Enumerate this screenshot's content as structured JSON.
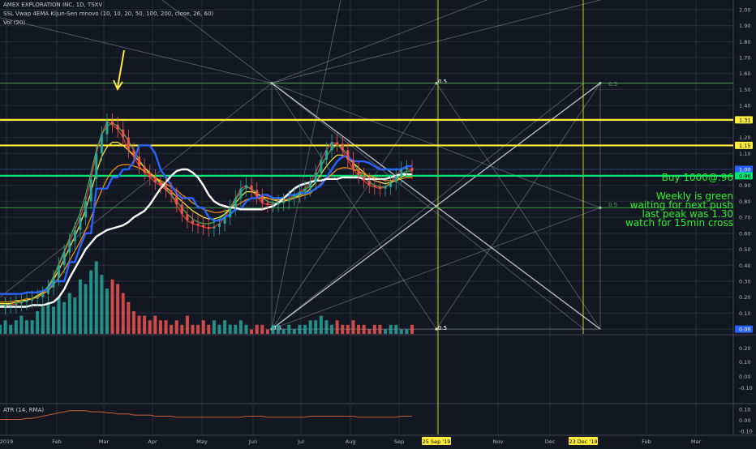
{
  "header": {
    "title": "AMEX EXPLORATION INC, 1D, TSXV",
    "indicators": "SSL Vwap 4EMA Kijun-Sen mnovo (10, 10, 20, 50, 100, 200, close, 26, 60)",
    "volume": "Vol (20)"
  },
  "atr": {
    "label": "ATR (14, RMA)",
    "ticks": [
      "0.10",
      "0.00",
      "-0.10"
    ]
  },
  "annotation": {
    "buy": "Buy 1000@.96",
    "line2": "Weekly is green",
    "line3": "waiting for next push",
    "line4": "last peak was 1.30",
    "line5": "watch for 15min cross"
  },
  "chart_data": {
    "type": "line",
    "price_axis": {
      "ylim": [
        -0.03,
        2.03
      ],
      "ticks": [
        "2.00",
        "1.90",
        "1.80",
        "1.70",
        "1.60",
        "1.50",
        "1.40",
        "1.30",
        "1.20",
        "1.10",
        "1.00",
        "0.90",
        "0.80",
        "0.70",
        "0.60",
        "0.50",
        "0.40",
        "0.30",
        "0.20",
        "0.10",
        "0.00"
      ],
      "badges": [
        {
          "label": "1.31",
          "color": "#ffeb3b",
          "text_color": "#000000"
        },
        {
          "label": "1.15",
          "color": "#ffeb3b",
          "text_color": "#000000"
        },
        {
          "label": "1.00",
          "color": "#2962ff",
          "text_color": "#ffffff"
        },
        {
          "label": "0.96",
          "color": "#00e676",
          "text_color": "#000000"
        },
        {
          "label": "0.00",
          "color": "#2962ff",
          "text_color": "#ffffff"
        }
      ]
    },
    "volume_axis": {
      "ticks": [
        "0.20",
        "0.10",
        "0.00",
        "-0.10"
      ]
    },
    "time_axis": {
      "ticks": [
        "2019",
        "Feb",
        "Mar",
        "Apr",
        "May",
        "Jun",
        "Jul",
        "Aug",
        "Sep",
        "25 Sep '19",
        "Nov",
        "Dec",
        "23 Dec '19",
        "Feb",
        "Mar"
      ],
      "highlighted": [
        "25 Sep '19",
        "23 Dec '19"
      ]
    },
    "horizontal_levels": [
      {
        "value": 1.31,
        "color": "#ffeb3b"
      },
      {
        "value": 1.15,
        "color": "#ffeb3b"
      },
      {
        "value": 0.96,
        "color": "#00e676"
      },
      {
        "value": 1.54,
        "color": "#4caf50"
      },
      {
        "value": 0.76,
        "color": "#4caf50"
      }
    ],
    "gann_labels": [
      "0.5",
      "0.5",
      "0.5",
      "0.5",
      "0.5"
    ],
    "series": [
      {
        "values": [
          0.14,
          0.15,
          0.15,
          0.16,
          0.17,
          0.18,
          0.19,
          0.2,
          0.22,
          0.26,
          0.32,
          0.4,
          0.48,
          0.55,
          0.62,
          0.7,
          0.8,
          0.94,
          1.1,
          1.22,
          1.3,
          1.28,
          1.25,
          1.2,
          1.12,
          1.08,
          1.02,
          0.98,
          0.95,
          0.92,
          0.9,
          0.87,
          0.84,
          0.78,
          0.72,
          0.68,
          0.66,
          0.65,
          0.64,
          0.63,
          0.64,
          0.66,
          0.7,
          0.76,
          0.82,
          0.88,
          0.9,
          0.87,
          0.83,
          0.79,
          0.78,
          0.78,
          0.79,
          0.8,
          0.82,
          0.84,
          0.86,
          0.88,
          0.92,
          0.98,
          1.06,
          1.12,
          1.17,
          1.16,
          1.12,
          1.06,
          1.0,
          0.96,
          0.93,
          0.9,
          0.89,
          0.88,
          0.89,
          0.92,
          0.96,
          1.0,
          1.01,
          0.99
        ]
      },
      {
        "values": [
          0.15,
          0.15,
          0.16,
          0.17,
          0.17,
          0.18,
          0.19,
          0.21,
          0.23,
          0.27,
          0.33,
          0.41,
          0.49,
          0.57,
          0.65,
          0.73,
          0.84,
          0.98,
          1.12,
          1.22,
          1.27,
          1.29,
          1.27,
          1.23,
          1.18,
          1.12,
          1.06,
          1.01,
          0.97,
          0.94,
          0.91,
          0.88,
          0.84,
          0.8,
          0.76,
          0.72,
          0.69,
          0.67,
          0.66,
          0.66,
          0.67,
          0.69,
          0.72,
          0.76,
          0.81,
          0.86,
          0.89,
          0.88,
          0.85,
          0.82,
          0.8,
          0.79,
          0.79,
          0.8,
          0.81,
          0.83,
          0.85,
          0.87,
          0.9,
          0.95,
          1.02,
          1.08,
          1.13,
          1.15,
          1.13,
          1.09,
          1.04,
          0.99,
          0.95,
          0.92,
          0.9,
          0.89,
          0.89,
          0.91,
          0.94,
          0.97,
          0.99,
          0.99
        ]
      },
      {
        "values": [
          0.16,
          0.16,
          0.16,
          0.17,
          0.18,
          0.18,
          0.19,
          0.21,
          0.23,
          0.26,
          0.31,
          0.37,
          0.44,
          0.51,
          0.58,
          0.66,
          0.75,
          0.86,
          0.98,
          1.08,
          1.14,
          1.17,
          1.17,
          1.15,
          1.12,
          1.09,
          1.05,
          1.01,
          0.98,
          0.95,
          0.92,
          0.89,
          0.86,
          0.83,
          0.8,
          0.77,
          0.74,
          0.72,
          0.7,
          0.69,
          0.69,
          0.7,
          0.72,
          0.75,
          0.79,
          0.83,
          0.86,
          0.86,
          0.85,
          0.83,
          0.82,
          0.81,
          0.8,
          0.8,
          0.81,
          0.82,
          0.84,
          0.85,
          0.88,
          0.92,
          0.97,
          1.02,
          1.06,
          1.09,
          1.09,
          1.07,
          1.04,
          1.01,
          0.98,
          0.95,
          0.93,
          0.92,
          0.91,
          0.92,
          0.93,
          0.95,
          0.97,
          0.97
        ]
      },
      {
        "values": [
          0.17,
          0.17,
          0.17,
          0.18,
          0.18,
          0.19,
          0.19,
          0.2,
          0.22,
          0.24,
          0.28,
          0.32,
          0.37,
          0.43,
          0.49,
          0.55,
          0.62,
          0.7,
          0.79,
          0.87,
          0.94,
          0.99,
          1.02,
          1.03,
          1.03,
          1.02,
          1.01,
          0.99,
          0.97,
          0.95,
          0.93,
          0.91,
          0.89,
          0.87,
          0.84,
          0.82,
          0.79,
          0.77,
          0.75,
          0.74,
          0.73,
          0.73,
          0.74,
          0.75,
          0.77,
          0.79,
          0.81,
          0.82,
          0.82,
          0.82,
          0.82,
          0.81,
          0.81,
          0.81,
          0.81,
          0.82,
          0.83,
          0.84,
          0.85,
          0.88,
          0.91,
          0.94,
          0.97,
          1.0,
          1.01,
          1.01,
          1.0,
          0.99,
          0.97,
          0.96,
          0.95,
          0.94,
          0.93,
          0.93,
          0.93,
          0.94,
          0.95,
          0.95
        ]
      },
      {
        "values": [
          0.22,
          0.22,
          0.22,
          0.22,
          0.22,
          0.23,
          0.23,
          0.23,
          0.24,
          0.25,
          0.3,
          0.3,
          0.3,
          0.42,
          0.42,
          0.52,
          0.6,
          0.6,
          0.88,
          0.88,
          0.88,
          0.95,
          0.95,
          1.0,
          1.0,
          1.05,
          1.15,
          1.15,
          1.15,
          1.1,
          1.0,
          0.95,
          0.9,
          0.85,
          0.82,
          0.82,
          0.82,
          0.76,
          0.76,
          0.7,
          0.68,
          0.68,
          0.7,
          0.72,
          0.75,
          0.75,
          0.8,
          0.82,
          0.82,
          0.84,
          0.84,
          0.82,
          0.82,
          0.82,
          0.84,
          0.84,
          0.85,
          0.85,
          0.86,
          0.88,
          0.9,
          0.95,
          1.0,
          1.05,
          1.08,
          1.08,
          1.05,
          1.05,
          1.05,
          1.04,
          1.02,
          1.0,
          1.0,
          1.0,
          1.0,
          1.0,
          1.02,
          1.02
        ]
      },
      {
        "values": [
          0.14,
          0.14,
          0.14,
          0.14,
          0.14,
          0.14,
          0.15,
          0.15,
          0.15,
          0.16,
          0.17,
          0.2,
          0.25,
          0.32,
          0.38,
          0.44,
          0.5,
          0.54,
          0.58,
          0.6,
          0.62,
          0.63,
          0.64,
          0.65,
          0.67,
          0.7,
          0.72,
          0.74,
          0.78,
          0.83,
          0.88,
          0.92,
          0.96,
          0.99,
          1.0,
          1.0,
          0.98,
          0.95,
          0.9,
          0.84,
          0.8,
          0.78,
          0.77,
          0.76,
          0.76,
          0.75,
          0.75,
          0.75,
          0.75,
          0.75,
          0.76,
          0.77,
          0.79,
          0.82,
          0.85,
          0.88,
          0.9,
          0.91,
          0.92,
          0.93,
          0.93,
          0.94,
          0.94,
          0.94,
          0.95,
          0.95,
          0.95,
          0.95,
          0.94,
          0.94,
          0.94,
          0.94,
          0.94,
          0.95,
          0.96,
          0.97,
          0.97,
          0.97
        ]
      }
    ],
    "volume": [
      0.02,
      0.03,
      0.02,
      0.03,
      0.04,
      0.03,
      0.03,
      0.05,
      0.06,
      0.07,
      0.06,
      0.08,
      0.07,
      0.09,
      0.08,
      0.12,
      0.11,
      0.14,
      0.16,
      0.13,
      0.1,
      0.12,
      0.11,
      0.09,
      0.07,
      0.05,
      0.04,
      0.04,
      0.03,
      0.04,
      0.03,
      0.03,
      0.02,
      0.03,
      0.02,
      0.04,
      0.02,
      0.02,
      0.03,
      0.02,
      0.03,
      0.02,
      0.03,
      0.02,
      0.02,
      0.03,
      0.02,
      0.01,
      0.02,
      0.02,
      0.01,
      0.02,
      0.02,
      0.01,
      0.02,
      0.01,
      0.02,
      0.02,
      0.03,
      0.03,
      0.04,
      0.03,
      0.02,
      0.03,
      0.02,
      0.02,
      0.03,
      0.02,
      0.02,
      0.01,
      0.02,
      0.02,
      0.01,
      0.02,
      0.02,
      0.01,
      0.01,
      0.02
    ],
    "atr": [
      0.01,
      0.01,
      0.01,
      0.01,
      0.01,
      0.02,
      0.02,
      0.03,
      0.04,
      0.05,
      0.06,
      0.07,
      0.08,
      0.09,
      0.09,
      0.09,
      0.09,
      0.08,
      0.08,
      0.08,
      0.07,
      0.07,
      0.06,
      0.06,
      0.06,
      0.05,
      0.05,
      0.05,
      0.05,
      0.04,
      0.04,
      0.04,
      0.04,
      0.03,
      0.03,
      0.03,
      0.03,
      0.03,
      0.03,
      0.03,
      0.03,
      0.03,
      0.03,
      0.03,
      0.03,
      0.03,
      0.04,
      0.04,
      0.04,
      0.04,
      0.03,
      0.03,
      0.03,
      0.03,
      0.03,
      0.03,
      0.03,
      0.03,
      0.04,
      0.04,
      0.04,
      0.04,
      0.04,
      0.04,
      0.04,
      0.04,
      0.04,
      0.03,
      0.03,
      0.03,
      0.03,
      0.03,
      0.03,
      0.03,
      0.03,
      0.04,
      0.04,
      0.04
    ],
    "colors": {
      "background": "#131722",
      "axis_text": "#b2b5be",
      "grid": "#2a2e39",
      "ma_fast": "#e53935",
      "ma_mid": "#4caf50",
      "ma_slow": "#ffeb3b",
      "ma_long": "#ff9800",
      "kijun": "#2962ff",
      "vwap": "#ffffff",
      "vol_up": "#26a69a",
      "vol_down": "#ef5350",
      "atr": "#c06030",
      "fan": "#cfd3dc",
      "arrow": "#ffeb3b"
    }
  }
}
